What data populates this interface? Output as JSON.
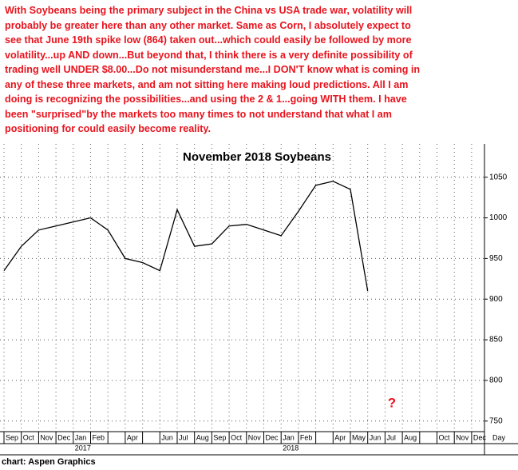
{
  "chart_data": {
    "type": "line",
    "note_lines": [
      "With Soybeans being the primary subject in the China vs USA trade war, volatility will",
      "probably be greater here than any other market. Same as Corn, I absolutely expect to",
      "see that June 19th spike low (864) taken out...which could easily be followed by more",
      "volatility...up AND down...But beyond that, I think there is a very definite possibility of",
      "trading well UNDER $8.00...Do not misunderstand me...I DON'T know what is coming in",
      "any of these three markets, and am not sitting here making loud predictions. All I am",
      "doing is recognizing the possibilities...and using the 2 & 1...going WITH them. I have",
      "been \"surprised\"by the markets too many times to not understand that what I am",
      "positioning for could easily become reality."
    ],
    "title": "November 2018 Soybeans",
    "categories": [
      "Sep",
      "Oct",
      "Nov",
      "Dec",
      "Jan",
      "Feb",
      null,
      "Apr",
      null,
      "Jun",
      "Jul",
      "Aug",
      "Sep",
      "Oct",
      "Nov",
      "Dec",
      "Jan",
      "Feb",
      null,
      "Apr",
      "May",
      "Jun",
      "Jul",
      "Aug",
      null,
      "Oct",
      "Nov",
      "Dec"
    ],
    "x_unit_label": "Day",
    "year_labels": [
      {
        "label": "2017",
        "at": 4
      },
      {
        "label": "2018",
        "at": 16
      }
    ],
    "series": [
      {
        "name": "November 2018 Soybeans",
        "color": "#000000",
        "values": [
          935,
          965,
          985,
          990,
          995,
          1000,
          985,
          950,
          945,
          935,
          1010,
          965,
          968,
          990,
          992,
          985,
          978,
          1008,
          1040,
          1045,
          1035,
          910,
          null,
          null,
          null,
          null,
          null,
          null
        ]
      }
    ],
    "ylim": [
      737,
      1091
    ],
    "yticks": [
      750,
      800,
      850,
      900,
      950,
      1000,
      1050
    ],
    "grid": true,
    "annotation": "?",
    "source": "chart: Aspen Graphics"
  }
}
